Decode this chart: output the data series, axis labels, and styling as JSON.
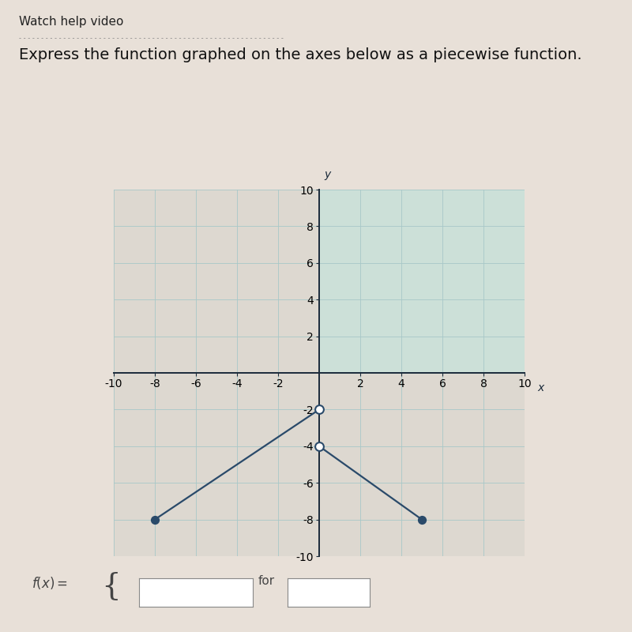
{
  "title": "Express the function graphed on the axes below as a piecewise function.",
  "subtitle": "Watch help video",
  "xlim": [
    -10,
    10
  ],
  "ylim": [
    -10,
    10
  ],
  "xticks": [
    -10,
    -8,
    -6,
    -4,
    -2,
    2,
    4,
    6,
    8,
    10
  ],
  "yticks": [
    -10,
    -8,
    -6,
    -4,
    -2,
    2,
    4,
    6,
    8,
    10
  ],
  "xlabel": "x",
  "ylabel": "y",
  "grid_color": "#a8c8c8",
  "axis_color": "#1a2a3a",
  "line_color": "#2a4a6a",
  "background_color": "#e8e0d8",
  "plot_bg_left": "#ddd8d0",
  "plot_bg_right_top": "#cce0d8",
  "plot_bg_right_bottom": "#ddd8d0",
  "segment1": {
    "x": [
      -8,
      0
    ],
    "y": [
      -8,
      -2
    ],
    "closed_start": true,
    "open_end": true
  },
  "segment2": {
    "x": [
      0,
      5
    ],
    "y": [
      -4,
      -8
    ],
    "open_start": true,
    "closed_end": true
  },
  "figsize": [
    8,
    8
  ],
  "dpi": 100,
  "title_fontsize": 14,
  "subtitle_fontsize": 11,
  "axis_label_fontsize": 10,
  "tick_fontsize": 8,
  "dot_size": 50,
  "line_width": 1.6
}
